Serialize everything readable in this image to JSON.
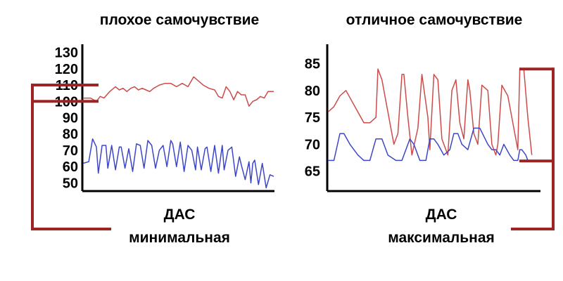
{
  "chart_data": [
    {
      "type": "line",
      "title": "плохое самочувствие",
      "caption_line1": "ДАС",
      "caption_line2": "минимальная",
      "y_ticks": [
        "130",
        "120",
        "110",
        "100",
        "90",
        "80",
        "70",
        "60",
        "50"
      ],
      "y_tick_values": [
        130,
        120,
        110,
        100,
        90,
        80,
        70,
        60,
        50
      ],
      "ylim": [
        45,
        135
      ],
      "x_range": [
        0,
        100
      ],
      "bracket_values": [
        110,
        100
      ],
      "series": [
        {
          "color": "#cc4b4b",
          "x": [
            0,
            4,
            7,
            9,
            11,
            14,
            17,
            19,
            21,
            23,
            25,
            27,
            29,
            31,
            33,
            35,
            37,
            40,
            43,
            46,
            49,
            52,
            55,
            58,
            60,
            63,
            66,
            69,
            71,
            73,
            75,
            77,
            79,
            81,
            83,
            85,
            87,
            89,
            91,
            93,
            95,
            97,
            100
          ],
          "y": [
            102,
            102,
            100,
            103,
            102,
            106,
            109,
            107,
            108,
            106,
            108,
            109,
            107,
            108,
            107,
            106,
            108,
            110,
            111,
            111,
            109,
            111,
            109,
            115,
            113,
            110,
            108,
            107,
            103,
            102,
            109,
            106,
            101,
            106,
            104,
            104,
            97,
            100,
            101,
            103,
            102,
            106,
            106
          ]
        },
        {
          "color": "#3e46c8",
          "x": [
            0,
            3,
            5,
            7,
            8,
            10,
            12,
            13,
            15,
            17,
            19,
            20,
            22,
            24,
            26,
            28,
            30,
            32,
            34,
            36,
            38,
            40,
            42,
            44,
            46,
            47,
            49,
            51,
            53,
            55,
            57,
            59,
            60,
            62,
            64,
            65,
            67,
            69,
            71,
            73,
            74,
            76,
            78,
            80,
            82,
            83,
            85,
            87,
            88,
            89,
            90,
            92,
            94,
            96,
            98,
            100
          ],
          "y": [
            62,
            63,
            77,
            72,
            56,
            73,
            73,
            59,
            73,
            58,
            72,
            72,
            59,
            71,
            57,
            74,
            73,
            59,
            76,
            73,
            59,
            70,
            73,
            60,
            76,
            74,
            60,
            75,
            57,
            73,
            70,
            58,
            72,
            58,
            71,
            72,
            57,
            73,
            56,
            73,
            58,
            70,
            72,
            54,
            66,
            61,
            52,
            63,
            50,
            62,
            64,
            49,
            62,
            47,
            55,
            54
          ]
        }
      ]
    },
    {
      "type": "line",
      "title": "отличное самочувствие",
      "caption_line1": "ДАС",
      "caption_line2": "максимальная",
      "y_ticks": [
        "85",
        "80",
        "75",
        "70",
        "65"
      ],
      "y_tick_values": [
        85,
        80,
        75,
        70,
        65
      ],
      "ylim": [
        61.3,
        88.6
      ],
      "x_range": [
        0,
        100
      ],
      "bracket_values": [
        84,
        66.9
      ],
      "series": [
        {
          "color": "#cc4b4b",
          "x": [
            0,
            3,
            6,
            9,
            12,
            15,
            18,
            21,
            24,
            25,
            27,
            30,
            33,
            35,
            37,
            38,
            40,
            42,
            45,
            47,
            50,
            51,
            53,
            55,
            57,
            60,
            62,
            64,
            66,
            68,
            70,
            71,
            73,
            75,
            77,
            80,
            82,
            84,
            85,
            87,
            90,
            93,
            95,
            96,
            98,
            100,
            102
          ],
          "y": [
            76,
            77,
            79,
            80,
            78,
            76,
            74,
            74,
            75,
            84,
            82,
            76,
            70,
            72,
            83,
            83,
            75,
            68,
            73,
            83,
            75,
            69,
            83,
            82,
            71,
            68,
            80,
            82,
            74,
            71,
            82,
            80,
            72,
            70,
            81,
            80,
            70,
            68,
            70,
            81,
            79,
            73,
            69,
            84,
            84,
            75,
            68
          ]
        },
        {
          "color": "#3e46c8",
          "x": [
            0,
            3,
            6,
            8,
            11,
            15,
            18,
            21,
            24,
            25,
            27,
            30,
            34,
            37,
            40,
            41,
            43,
            46,
            49,
            51,
            53,
            55,
            58,
            61,
            63,
            65,
            67,
            70,
            73,
            76,
            80,
            82,
            84,
            86,
            88,
            91,
            93,
            94,
            95,
            96,
            97,
            99,
            100
          ],
          "y": [
            67,
            67,
            72,
            72,
            70,
            68,
            67,
            67,
            71,
            71,
            71,
            68,
            67,
            67,
            70,
            71,
            70,
            67,
            67,
            71,
            71,
            70,
            68,
            69,
            72,
            72,
            70,
            69,
            73,
            73,
            70,
            69,
            69,
            68,
            70,
            68,
            67,
            67,
            67,
            69,
            69,
            68,
            67
          ]
        }
      ]
    }
  ]
}
